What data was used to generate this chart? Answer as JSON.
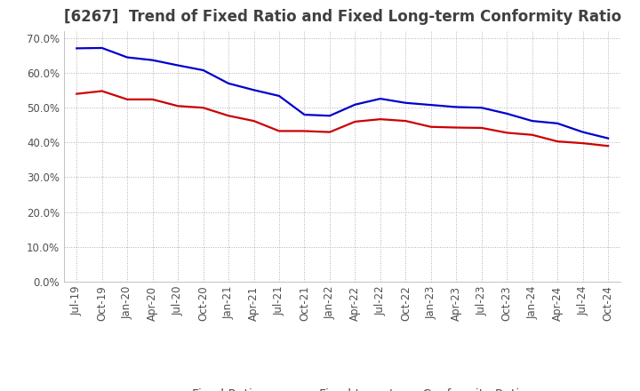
{
  "title": "[6267]  Trend of Fixed Ratio and Fixed Long-term Conformity Ratio",
  "title_fontsize": 12,
  "title_color": "#404040",
  "background_color": "#ffffff",
  "plot_background_color": "#ffffff",
  "grid_color": "#b0b0b0",
  "ylim": [
    0.0,
    0.72
  ],
  "yticks": [
    0.0,
    0.1,
    0.2,
    0.3,
    0.4,
    0.5,
    0.6,
    0.7
  ],
  "x_labels": [
    "Jul-19",
    "Oct-19",
    "Jan-20",
    "Apr-20",
    "Jul-20",
    "Oct-20",
    "Jan-21",
    "Apr-21",
    "Jul-21",
    "Oct-21",
    "Jan-22",
    "Apr-22",
    "Jul-22",
    "Oct-22",
    "Jan-23",
    "Apr-23",
    "Jul-23",
    "Oct-23",
    "Jan-24",
    "Apr-24",
    "Jul-24",
    "Oct-24"
  ],
  "fixed_ratio": [
    0.671,
    0.672,
    0.645,
    0.637,
    0.622,
    0.608,
    0.57,
    0.551,
    0.534,
    0.48,
    0.477,
    0.509,
    0.526,
    0.514,
    0.508,
    0.502,
    0.5,
    0.483,
    0.462,
    0.455,
    0.43,
    0.412
  ],
  "fixed_lt_ratio": [
    0.54,
    0.548,
    0.524,
    0.524,
    0.505,
    0.5,
    0.477,
    0.462,
    0.433,
    0.433,
    0.43,
    0.46,
    0.467,
    0.462,
    0.445,
    0.443,
    0.442,
    0.428,
    0.422,
    0.403,
    0.398,
    0.39
  ],
  "fixed_ratio_color": "#0000cc",
  "fixed_lt_ratio_color": "#cc0000",
  "line_width": 1.6,
  "legend_fontsize": 10,
  "tick_fontsize": 8.5,
  "legend_labels": [
    "Fixed Ratio",
    "Fixed Long-term Conformity Ratio"
  ]
}
